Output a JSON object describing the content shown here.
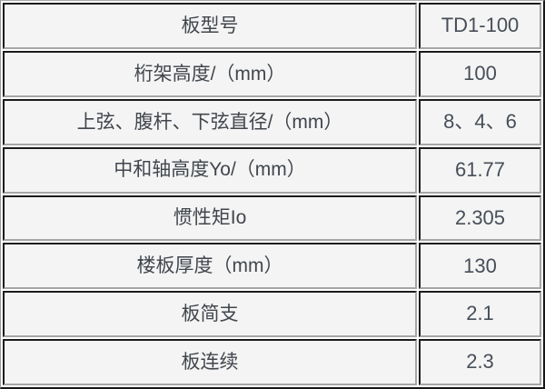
{
  "table": {
    "rows": [
      {
        "label": "板型号",
        "value": "TD1-100"
      },
      {
        "label": "桁架高度/（mm）",
        "value": "100"
      },
      {
        "label": "上弦、腹杆、下弦直径/（mm）",
        "value": "8、4、6"
      },
      {
        "label": "中和轴高度Yo/（mm）",
        "value": "61.77"
      },
      {
        "label": "惯性矩Io",
        "value": "2.305"
      },
      {
        "label": "楼板厚度（mm）",
        "value": "130"
      },
      {
        "label": "板简支",
        "value": "2.1"
      },
      {
        "label": "板连续",
        "value": "2.3"
      }
    ]
  },
  "colors": {
    "cell_background": "#f4f4f4",
    "gap": "#ffffff",
    "border_dark": "#1b1b1b",
    "border_light": "#a6a6a6",
    "label_text": "#41464d",
    "value_text": "#474e58"
  }
}
